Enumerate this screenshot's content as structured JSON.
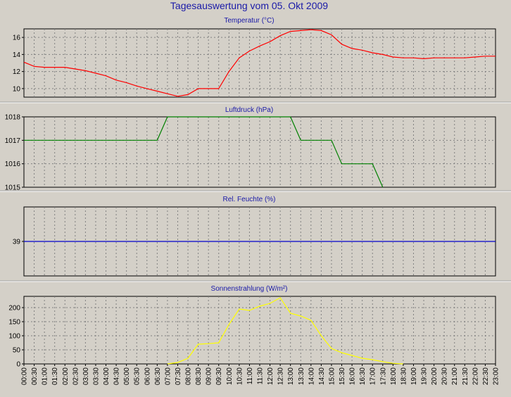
{
  "title": "Tagesauswertung vom 05. Okt 2009",
  "x_tick_labels": [
    "00:00",
    "00:30",
    "01:00",
    "01:30",
    "02:00",
    "02:30",
    "03:00",
    "03:30",
    "04:00",
    "04:30",
    "05:00",
    "05:30",
    "06:00",
    "06:30",
    "07:00",
    "07:30",
    "08:00",
    "08:30",
    "09:00",
    "09:30",
    "10:00",
    "10:30",
    "11:00",
    "11:30",
    "12:00",
    "12:30",
    "13:00",
    "13:30",
    "14:00",
    "14:30",
    "15:00",
    "15:30",
    "16:00",
    "16:30",
    "17:00",
    "17:30",
    "18:00",
    "18:30",
    "19:00",
    "19:30",
    "20:00",
    "20:30",
    "21:00",
    "21:30",
    "22:00",
    "22:30",
    "23:00"
  ],
  "chart_data": [
    {
      "type": "line",
      "title": "Temperatur (°C)",
      "color": "#ff0000",
      "ylim": [
        9,
        17
      ],
      "yticks": [
        10,
        12,
        14,
        16
      ],
      "grid": true,
      "x": [
        "00:00",
        "00:30",
        "01:00",
        "01:30",
        "02:00",
        "02:30",
        "03:00",
        "03:30",
        "04:00",
        "04:30",
        "05:00",
        "05:30",
        "06:00",
        "06:30",
        "07:00",
        "07:30",
        "08:00",
        "08:30",
        "09:00",
        "09:30",
        "10:00",
        "10:30",
        "11:00",
        "11:30",
        "12:00",
        "12:30",
        "13:00",
        "13:30",
        "14:00",
        "14:30",
        "15:00",
        "15:30",
        "16:00",
        "16:30",
        "17:00",
        "17:30",
        "18:00",
        "18:30",
        "19:00",
        "19:30",
        "20:00",
        "20:30",
        "21:00",
        "21:30",
        "22:00",
        "22:30",
        "23:00"
      ],
      "values": [
        13.1,
        12.6,
        12.5,
        12.5,
        12.5,
        12.3,
        12.1,
        11.8,
        11.5,
        11.0,
        10.7,
        10.3,
        10.0,
        9.7,
        9.4,
        9.1,
        9.3,
        10.0,
        10.0,
        10.0,
        12.0,
        13.6,
        14.4,
        15.0,
        15.5,
        16.2,
        16.7,
        16.8,
        16.9,
        16.8,
        16.3,
        15.2,
        14.7,
        14.5,
        14.2,
        14.0,
        13.7,
        13.6,
        13.6,
        13.5,
        13.6,
        13.6,
        13.6,
        13.6,
        13.7,
        13.8,
        13.8
      ]
    },
    {
      "type": "line",
      "title": "Luftdruck (hPa)",
      "color": "#008000",
      "ylim": [
        1015,
        1018
      ],
      "yticks": [
        1015,
        1016,
        1017,
        1018
      ],
      "grid": true,
      "x": [
        "00:00",
        "06:30",
        "07:00",
        "13:00",
        "13:30",
        "15:00",
        "15:30",
        "17:00",
        "17:30"
      ],
      "values": [
        1017,
        1017,
        1018,
        1018,
        1017,
        1017,
        1016,
        1016,
        1015
      ]
    },
    {
      "type": "line",
      "title": "Rel. Feuchte (%)",
      "color": "#0000cc",
      "ylim": [
        29,
        49
      ],
      "yticks": [
        39
      ],
      "grid": true,
      "x": [
        "00:00",
        "23:00"
      ],
      "values": [
        39,
        39
      ]
    },
    {
      "type": "line",
      "title": "Sonnenstrahlung (W/m²)",
      "color": "#ffff00",
      "ylim": [
        0,
        240
      ],
      "yticks": [
        0,
        50,
        100,
        150,
        200
      ],
      "grid": true,
      "x": [
        "07:00",
        "07:30",
        "08:00",
        "08:30",
        "09:00",
        "09:30",
        "10:00",
        "10:30",
        "11:00",
        "11:30",
        "12:00",
        "12:30",
        "13:00",
        "13:30",
        "14:00",
        "14:30",
        "15:00",
        "15:30",
        "16:00",
        "16:30",
        "17:00",
        "17:30",
        "18:00",
        "18:30"
      ],
      "values": [
        0,
        5,
        20,
        70,
        72,
        75,
        140,
        195,
        190,
        205,
        215,
        235,
        180,
        170,
        155,
        100,
        55,
        40,
        30,
        20,
        15,
        8,
        2,
        0
      ]
    }
  ]
}
